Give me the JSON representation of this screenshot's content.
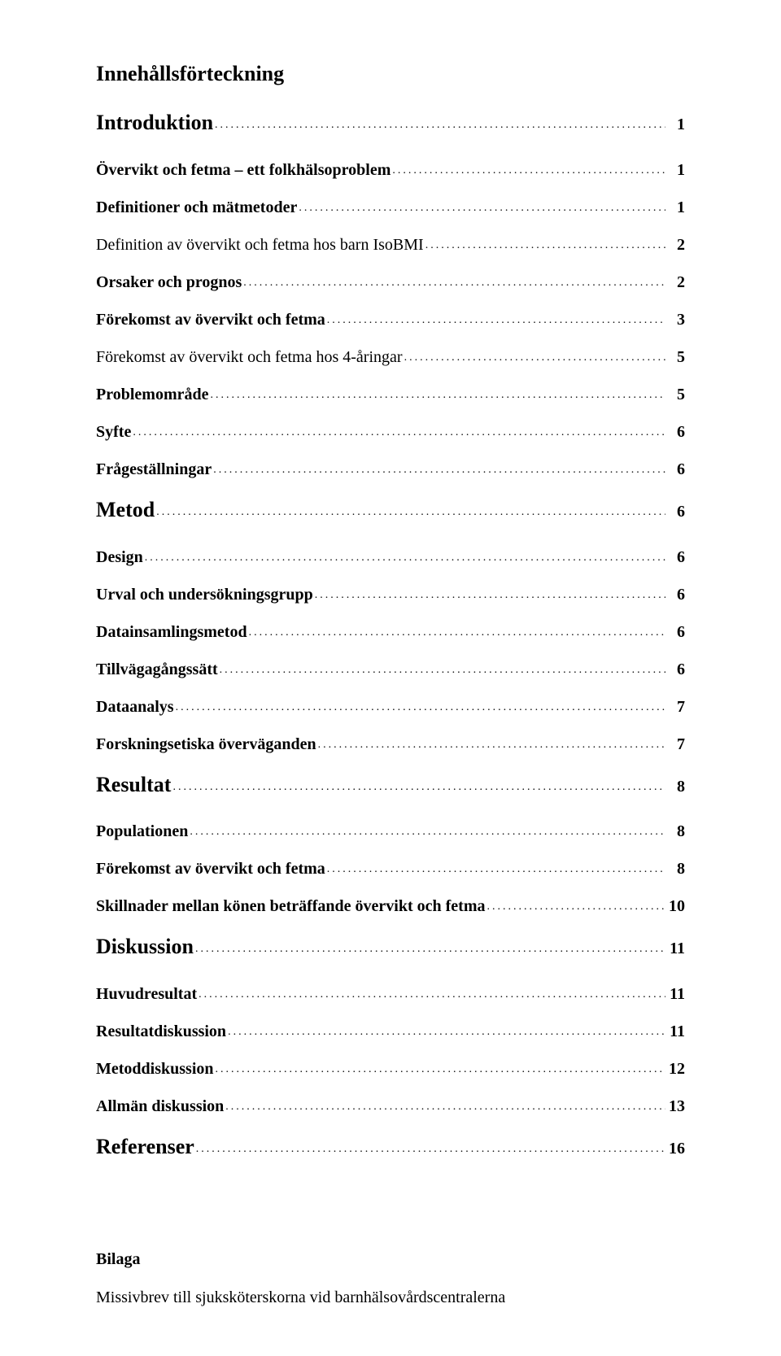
{
  "doc": {
    "title": "Innehållsförteckning",
    "font_family": "Times New Roman",
    "title_fontsize": 26,
    "entry_fontsize_bold": 26,
    "entry_fontsize_normal": 20,
    "text_color": "#000000",
    "background_color": "#ffffff",
    "leader_char": "."
  },
  "toc": [
    {
      "label": "Introduktion",
      "page": "1",
      "level": 0
    },
    {
      "label": "Övervikt och fetma – ett folkhälsoproblem",
      "page": "1",
      "level": 1
    },
    {
      "label": "Definitioner och mätmetoder",
      "page": "1",
      "level": 1
    },
    {
      "label": "Definition av övervikt och fetma hos barn IsoBMI",
      "page": "2",
      "level": 2
    },
    {
      "label": "Orsaker och prognos",
      "page": "2",
      "level": 1
    },
    {
      "label": "Förekomst av övervikt och fetma",
      "page": "3",
      "level": 1
    },
    {
      "label": "Förekomst av övervikt och fetma hos 4-åringar",
      "page": "5",
      "level": 2
    },
    {
      "label": "Problemområde",
      "page": "5",
      "level": 1
    },
    {
      "label": "Syfte",
      "page": "6",
      "level": 1
    },
    {
      "label": "Frågeställningar",
      "page": "6",
      "level": 1
    },
    {
      "label": "Metod",
      "page": "6",
      "level": 0
    },
    {
      "label": "Design",
      "page": "6",
      "level": 1
    },
    {
      "label": "Urval och undersökningsgrupp",
      "page": "6",
      "level": 1
    },
    {
      "label": "Datainsamlingsmetod",
      "page": "6",
      "level": 1
    },
    {
      "label": "Tillvägagångssätt",
      "page": "6",
      "level": 1
    },
    {
      "label": "Dataanalys",
      "page": "7",
      "level": 1
    },
    {
      "label": "Forskningsetiska överväganden",
      "page": "7",
      "level": 1
    },
    {
      "label": "Resultat",
      "page": "8",
      "level": 0
    },
    {
      "label": "Populationen",
      "page": "8",
      "level": 1
    },
    {
      "label": "Förekomst av övervikt och fetma",
      "page": "8",
      "level": 1
    },
    {
      "label": "Skillnader mellan könen beträffande övervikt och fetma",
      "page": "10",
      "level": 1
    },
    {
      "label": "Diskussion",
      "page": "11",
      "level": 0
    },
    {
      "label": "Huvudresultat",
      "page": "11",
      "level": 1
    },
    {
      "label": "Resultatdiskussion",
      "page": "11",
      "level": 1
    },
    {
      "label": "Metoddiskussion",
      "page": "12",
      "level": 1
    },
    {
      "label": "Allmän diskussion",
      "page": "13",
      "level": 1
    },
    {
      "label": "Referenser",
      "page": "16",
      "level": 0
    }
  ],
  "appendix": {
    "heading": "Bilaga",
    "line": "Missivbrev till sjuksköterskorna vid barnhälsovårdscentralerna"
  }
}
